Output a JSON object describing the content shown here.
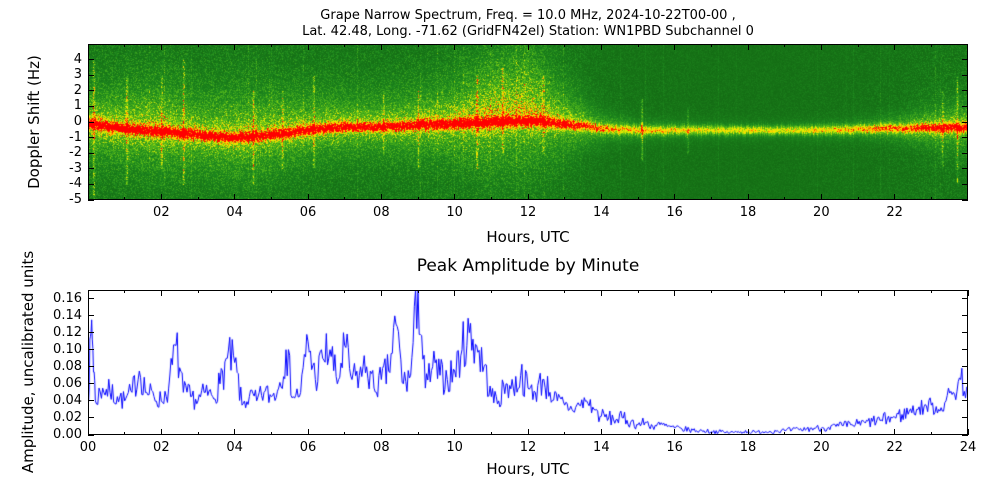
{
  "chart_data": [
    {
      "type": "heatmap",
      "title_line1": "Grape Narrow Spectrum, Freq. = 10.0 MHz, 2024-10-22T00-00 ,",
      "title_line2": "Lat.  42.48, Long. -71.62 (GridFN42el) Station: WN1PBD Subchannel 0",
      "xlabel": "Hours, UTC",
      "ylabel": "Doppler Shift (Hz)",
      "xlim": [
        0,
        24
      ],
      "ylim": [
        -5,
        5
      ],
      "xtick_values": [
        2,
        4,
        6,
        8,
        10,
        12,
        14,
        16,
        18,
        20,
        22
      ],
      "xticks": [
        "02",
        "04",
        "06",
        "08",
        "10",
        "12",
        "14",
        "16",
        "18",
        "20",
        "22"
      ],
      "xminor": [
        1,
        3,
        5,
        7,
        9,
        11,
        13,
        15,
        17,
        19,
        21,
        23
      ],
      "ytick_values": [
        4,
        3,
        2,
        1,
        0,
        -1,
        -2,
        -3,
        -4,
        -5
      ],
      "yticks": [
        "4",
        "3",
        "2",
        "1",
        "0",
        "-1",
        "-2",
        "-3",
        "-4",
        "-5"
      ],
      "colormap": [
        [
          0,
          "#084808"
        ],
        [
          0.45,
          "#1f8b1f"
        ],
        [
          0.7,
          "#5cbf1a"
        ],
        [
          0.85,
          "#e8ee00"
        ],
        [
          0.95,
          "#ffd700"
        ],
        [
          1.03,
          "#ff7700"
        ],
        [
          1.12,
          "#ff0000"
        ]
      ],
      "hourly": {
        "envelope": [
          0.9,
          0.9,
          0.9,
          0.85,
          0.9,
          0.85,
          0.8,
          0.8,
          0.8,
          0.85,
          0.9,
          0.95,
          0.9,
          0.75,
          0.5,
          0.4,
          0.35,
          0.3,
          0.3,
          0.3,
          0.35,
          0.4,
          0.5,
          0.7,
          0.75
        ],
        "center_hz": [
          -0.1,
          -0.4,
          -0.6,
          -0.8,
          -1.0,
          -0.8,
          -0.5,
          -0.3,
          -0.3,
          -0.2,
          -0.1,
          0.0,
          0.1,
          -0.1,
          -0.4,
          -0.5,
          -0.5,
          -0.5,
          -0.5,
          -0.5,
          -0.5,
          -0.45,
          -0.4,
          -0.35,
          -0.3
        ],
        "spread_hz": [
          1.6,
          1.8,
          2.0,
          1.8,
          2.0,
          1.8,
          1.6,
          1.5,
          1.5,
          1.6,
          1.8,
          2.2,
          2.4,
          1.6,
          0.8,
          0.5,
          0.4,
          0.35,
          0.3,
          0.3,
          0.35,
          0.4,
          0.6,
          1.0,
          1.2
        ],
        "updraft": [
          0.1,
          0.2,
          0.3,
          0.2,
          0.2,
          0.3,
          0.3,
          0.2,
          0.2,
          0.2,
          0.3,
          0.6,
          0.8,
          0.4,
          0.1,
          0,
          0,
          0,
          0,
          0,
          0,
          0,
          0.1,
          0.1,
          0.1
        ]
      },
      "streaks": [
        {
          "h": 0.15,
          "s": 0.5,
          "lo": -5,
          "hi": 4
        },
        {
          "h": 1.05,
          "s": 0.4,
          "lo": -4,
          "hi": 3
        },
        {
          "h": 2.0,
          "s": 0.35,
          "lo": -3,
          "hi": 3
        },
        {
          "h": 2.6,
          "s": 0.45,
          "lo": -4,
          "hi": 4
        },
        {
          "h": 4.5,
          "s": 0.4,
          "lo": -4,
          "hi": 2
        },
        {
          "h": 5.3,
          "s": 0.35,
          "lo": -3,
          "hi": 2
        },
        {
          "h": 6.15,
          "s": 0.35,
          "lo": -3,
          "hi": 3
        },
        {
          "h": 8.05,
          "s": 0.3,
          "lo": -2,
          "hi": 2
        },
        {
          "h": 9.0,
          "s": 0.35,
          "lo": -3,
          "hi": 2
        },
        {
          "h": 10.6,
          "s": 0.45,
          "lo": -3,
          "hi": 3
        },
        {
          "h": 11.3,
          "s": 0.4,
          "lo": -2,
          "hi": 3.5
        },
        {
          "h": 12.4,
          "s": 0.35,
          "lo": -2,
          "hi": 3
        },
        {
          "h": 15.1,
          "s": 0.5,
          "lo": -2.5,
          "hi": 1.5
        },
        {
          "h": 16.35,
          "s": 0.3,
          "lo": -2,
          "hi": 1
        },
        {
          "h": 23.3,
          "s": 0.35,
          "lo": -3,
          "hi": 2
        },
        {
          "h": 23.7,
          "s": 0.4,
          "lo": -4,
          "hi": 3
        }
      ]
    },
    {
      "type": "line",
      "title": "Peak Amplitude by Minute",
      "xlabel": "Hours, UTC",
      "ylabel": "Amplitude, uncalibrated units",
      "xlim": [
        0,
        24
      ],
      "ylim": [
        0,
        0.17
      ],
      "xtick_values": [
        0,
        2,
        4,
        6,
        8,
        10,
        12,
        14,
        16,
        18,
        20,
        22,
        24
      ],
      "xticks": [
        "00",
        "02",
        "04",
        "06",
        "08",
        "10",
        "12",
        "14",
        "16",
        "18",
        "20",
        "22",
        "24"
      ],
      "xminor": [
        1,
        3,
        5,
        7,
        9,
        11,
        13,
        15,
        17,
        19,
        21,
        23
      ],
      "ytick_values": [
        0,
        0.02,
        0.04,
        0.06,
        0.08,
        0.1,
        0.12,
        0.14,
        0.16
      ],
      "yticks": [
        "0.00",
        "0.02",
        "0.04",
        "0.06",
        "0.08",
        "0.10",
        "0.12",
        "0.14",
        "0.16"
      ],
      "line_color": "#0000ff",
      "x_step": 0.2,
      "values": [
        0.04,
        0.04,
        0.055,
        0.05,
        0.045,
        0.04,
        0.05,
        0.075,
        0.05,
        0.045,
        0.04,
        0.055,
        0.105,
        0.05,
        0.045,
        0.04,
        0.05,
        0.045,
        0.06,
        0.09,
        0.085,
        0.035,
        0.045,
        0.04,
        0.05,
        0.045,
        0.055,
        0.1,
        0.045,
        0.05,
        0.11,
        0.065,
        0.09,
        0.1,
        0.06,
        0.105,
        0.065,
        0.07,
        0.08,
        0.055,
        0.065,
        0.075,
        0.13,
        0.06,
        0.07,
        0.175,
        0.055,
        0.08,
        0.07,
        0.065,
        0.075,
        0.1,
        0.12,
        0.105,
        0.08,
        0.045,
        0.04,
        0.06,
        0.055,
        0.07,
        0.055,
        0.05,
        0.065,
        0.05,
        0.04,
        0.035,
        0.03,
        0.035,
        0.04,
        0.03,
        0.022,
        0.02,
        0.018,
        0.02,
        0.015,
        0.012,
        0.015,
        0.01,
        0.012,
        0.01,
        0.008,
        0.007,
        0.006,
        0.005,
        0.005,
        0.004,
        0.004,
        0.003,
        0.003,
        0.004,
        0.004,
        0.003,
        0.004,
        0.004,
        0.005,
        0.005,
        0.006,
        0.006,
        0.007,
        0.008,
        0.008,
        0.009,
        0.01,
        0.011,
        0.012,
        0.013,
        0.014,
        0.016,
        0.017,
        0.019,
        0.021,
        0.024,
        0.028,
        0.03,
        0.033,
        0.035,
        0.03,
        0.04,
        0.05,
        0.065,
        0.055
      ],
      "spikes": [
        [
          0.1,
          0.135
        ]
      ]
    }
  ]
}
